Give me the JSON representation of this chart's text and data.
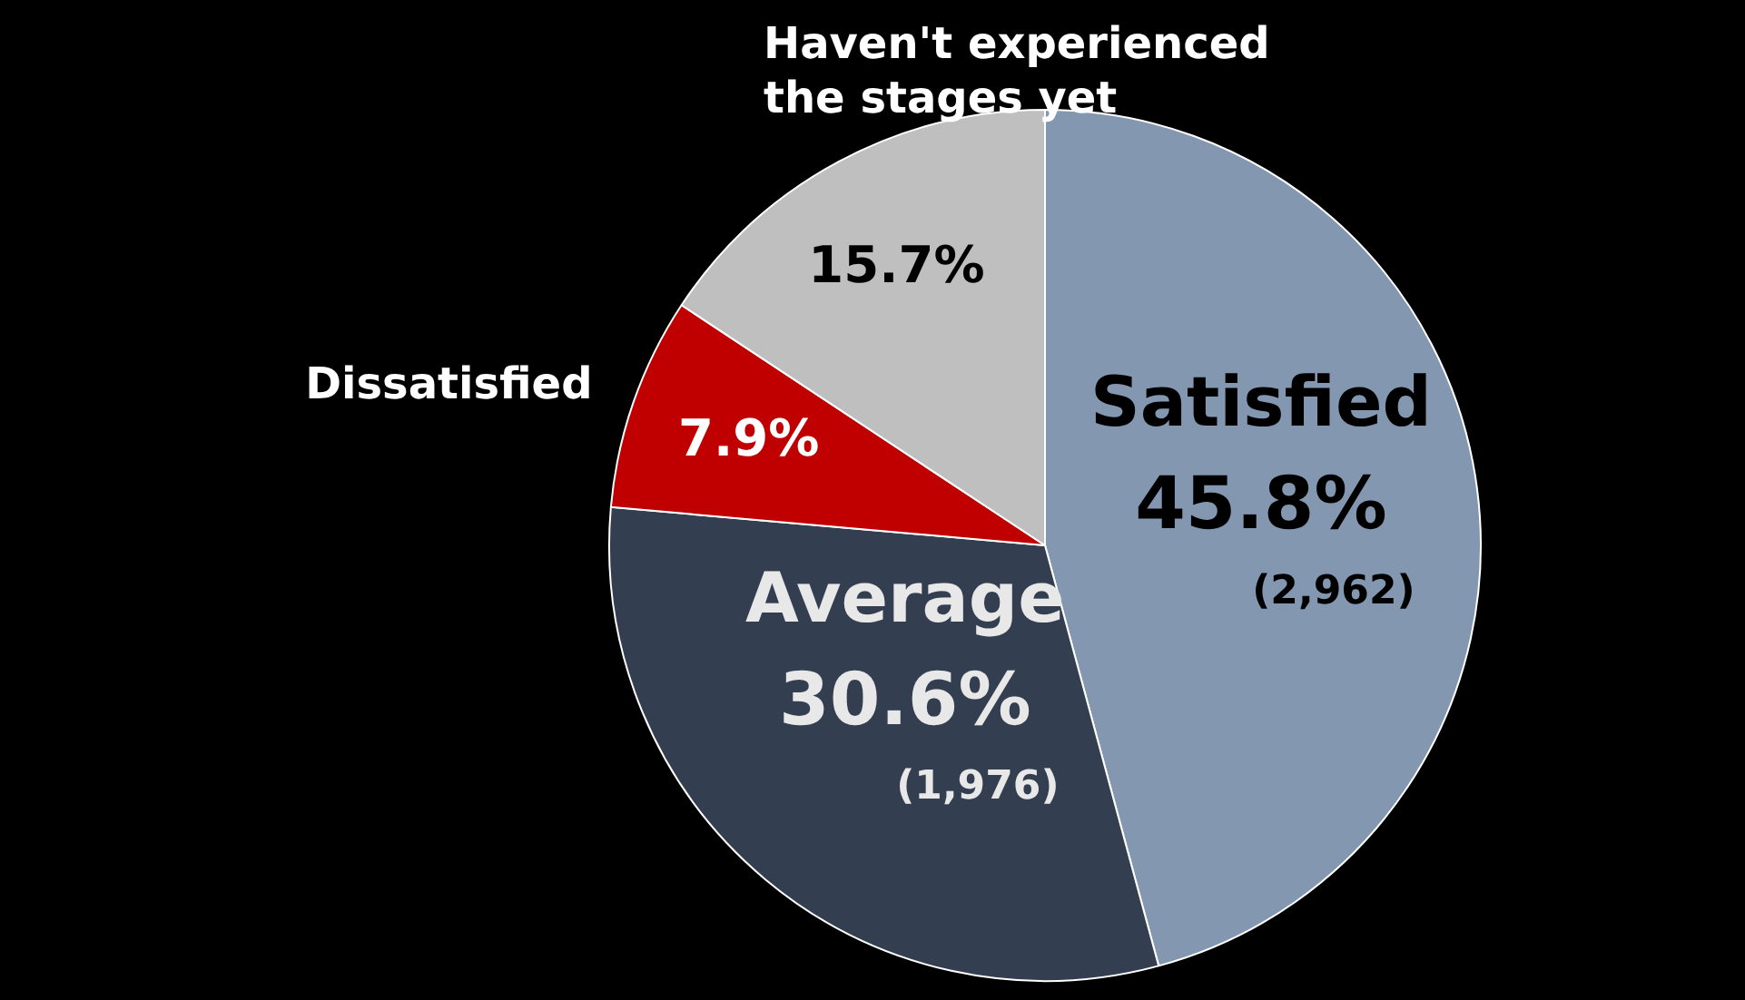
{
  "chart_data": {
    "type": "pie",
    "categories": [
      "Satisfied",
      "Average",
      "Dissatisfied",
      "Haven't experienced the stages yet"
    ],
    "values": [
      45.8,
      30.6,
      7.9,
      15.7
    ],
    "colors": [
      "#8497b0",
      "#333f50",
      "#c00000",
      "#bfbfbf"
    ],
    "value_labels": [
      "45.8%\n(2,962)",
      "30.6%\n(1,976)",
      "7.9%",
      "15.7%"
    ],
    "legend": false
  }
}
